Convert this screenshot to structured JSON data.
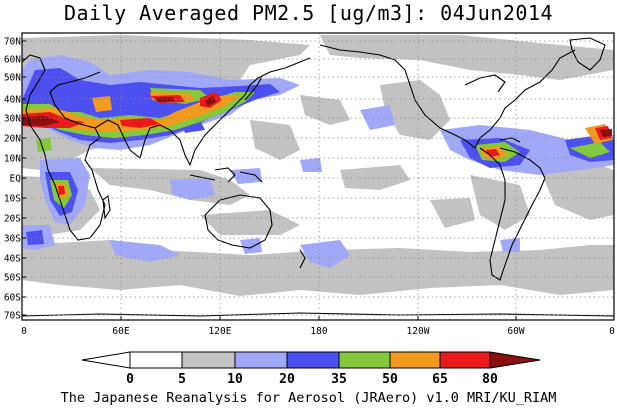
{
  "title": "Daily Averaged PM2.5 [ug/m3]: 04Jun2014",
  "footer": "The Japanese Reanalysis for Aerosol (JRAero) v1.0 MRI/KU_RIAM",
  "lat_labels": [
    "70N",
    "60N",
    "50N",
    "40N",
    "30N",
    "20N",
    "10N",
    "EQ",
    "10S",
    "20S",
    "30S",
    "40S",
    "50S",
    "60S",
    "70S"
  ],
  "lon_labels": [
    "0",
    "60E",
    "120E",
    "180",
    "120W",
    "60W",
    "0"
  ],
  "colorbar": {
    "labels": [
      "0",
      "5",
      "10",
      "20",
      "35",
      "50",
      "65",
      "80"
    ],
    "colors": [
      "#ffffff",
      "#ffffff",
      "#c2c2c2",
      "#a0a8f8",
      "#4d50f0",
      "#84c83c",
      "#f19a1e",
      "#ea1a1a",
      "#8b0f0f"
    ]
  },
  "field_colors": {
    "gray": "#c2c2c2",
    "light_blue": "#a0a8f8",
    "blue": "#4d50f0",
    "green": "#84c83c",
    "orange": "#f19a1e",
    "red": "#ea1a1a",
    "dark_red": "#8b0f0f"
  }
}
